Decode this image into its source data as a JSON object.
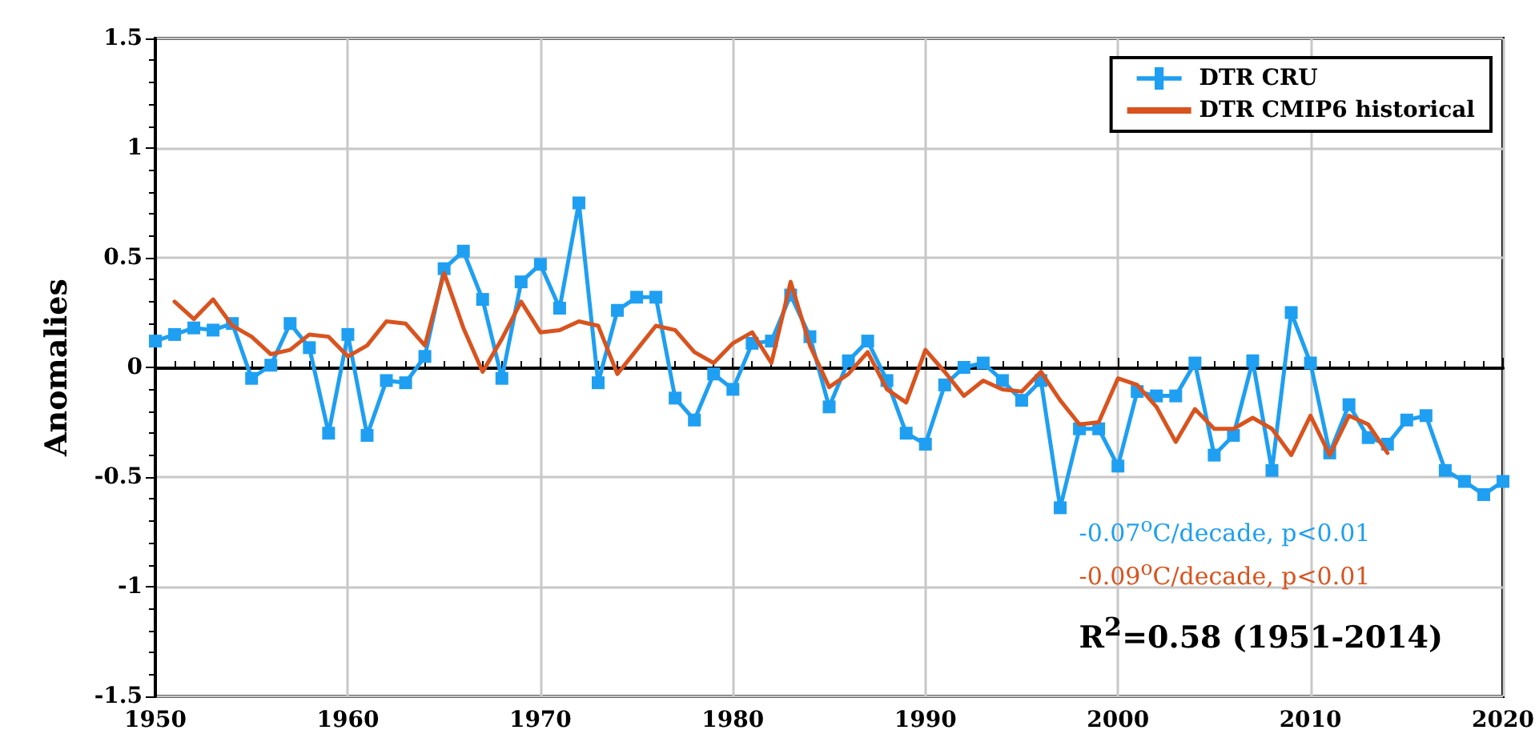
{
  "chart_data": {
    "type": "line",
    "ylabel": "Anomalies",
    "x": [
      1950,
      1951,
      1952,
      1953,
      1954,
      1955,
      1956,
      1957,
      1958,
      1959,
      1960,
      1961,
      1962,
      1963,
      1964,
      1965,
      1966,
      1967,
      1968,
      1969,
      1970,
      1971,
      1972,
      1973,
      1974,
      1975,
      1976,
      1977,
      1978,
      1979,
      1980,
      1981,
      1982,
      1983,
      1984,
      1985,
      1986,
      1987,
      1988,
      1989,
      1990,
      1991,
      1992,
      1993,
      1994,
      1995,
      1996,
      1997,
      1998,
      1999,
      2000,
      2001,
      2002,
      2003,
      2004,
      2005,
      2006,
      2007,
      2008,
      2009,
      2010,
      2011,
      2012,
      2013,
      2014,
      2015,
      2016,
      2017,
      2018,
      2019,
      2020
    ],
    "series": [
      {
        "name": "DTR CRU",
        "color": "#1e9ff2",
        "marker": "square",
        "values": [
          0.12,
          0.15,
          0.18,
          0.17,
          0.2,
          -0.05,
          0.01,
          0.2,
          0.09,
          -0.3,
          0.15,
          -0.31,
          -0.06,
          -0.07,
          0.05,
          0.45,
          0.53,
          0.31,
          -0.05,
          0.39,
          0.47,
          0.27,
          0.75,
          -0.07,
          0.26,
          0.32,
          0.32,
          -0.14,
          -0.24,
          -0.03,
          -0.1,
          0.11,
          0.12,
          0.33,
          0.14,
          -0.18,
          0.03,
          0.12,
          -0.06,
          -0.3,
          -0.35,
          -0.08,
          0.0,
          0.02,
          -0.06,
          -0.15,
          -0.06,
          -0.64,
          -0.28,
          -0.28,
          -0.45,
          -0.11,
          -0.13,
          -0.13,
          0.02,
          -0.4,
          -0.31,
          0.03,
          -0.47,
          0.25,
          0.02,
          -0.39,
          -0.17,
          -0.32,
          -0.35,
          -0.24,
          -0.22,
          -0.47,
          -0.52,
          -0.58,
          -0.52
        ]
      },
      {
        "name": "DTR CMIP6 historical",
        "color": "#d9531e",
        "marker": "none",
        "x": [
          1951,
          1952,
          1953,
          1954,
          1955,
          1956,
          1957,
          1958,
          1959,
          1960,
          1961,
          1962,
          1963,
          1964,
          1965,
          1966,
          1967,
          1968,
          1969,
          1970,
          1971,
          1972,
          1973,
          1974,
          1975,
          1976,
          1977,
          1978,
          1979,
          1980,
          1981,
          1982,
          1983,
          1984,
          1985,
          1986,
          1987,
          1988,
          1989,
          1990,
          1991,
          1992,
          1993,
          1994,
          1995,
          1996,
          1997,
          1998,
          1999,
          2000,
          2001,
          2002,
          2003,
          2004,
          2005,
          2006,
          2007,
          2008,
          2009,
          2010,
          2011,
          2012,
          2013,
          2014
        ],
        "values": [
          0.3,
          0.22,
          0.31,
          0.19,
          0.14,
          0.06,
          0.08,
          0.15,
          0.14,
          0.05,
          0.1,
          0.21,
          0.2,
          0.1,
          0.43,
          0.18,
          -0.02,
          0.13,
          0.3,
          0.16,
          0.17,
          0.21,
          0.19,
          -0.03,
          0.08,
          0.19,
          0.17,
          0.07,
          0.02,
          0.11,
          0.16,
          0.02,
          0.39,
          0.1,
          -0.09,
          -0.03,
          0.07,
          -0.1,
          -0.16,
          0.08,
          -0.02,
          -0.13,
          -0.06,
          -0.1,
          -0.11,
          -0.02,
          -0.15,
          -0.26,
          -0.25,
          -0.05,
          -0.08,
          -0.18,
          -0.34,
          -0.19,
          -0.28,
          -0.28,
          -0.23,
          -0.28,
          -0.4,
          -0.22,
          -0.4,
          -0.22,
          -0.26,
          -0.39
        ]
      }
    ],
    "xlim": [
      1950,
      2020
    ],
    "xticks": [
      1950,
      1960,
      1970,
      1980,
      1990,
      2000,
      2010,
      2020
    ],
    "ylim": [
      -1.5,
      1.5
    ],
    "yticks": [
      -1.5,
      -1,
      -0.5,
      0,
      0.5,
      1,
      1.5
    ],
    "grid": true,
    "legend": "top right",
    "line_style": "solid",
    "annotations": [
      "-0.07$^{o}$C/decade, p<0.01",
      "-0.09$^{o}$C/decade, p<0.01",
      "R$^{2}$=0.58 (1951-2014)"
    ]
  }
}
